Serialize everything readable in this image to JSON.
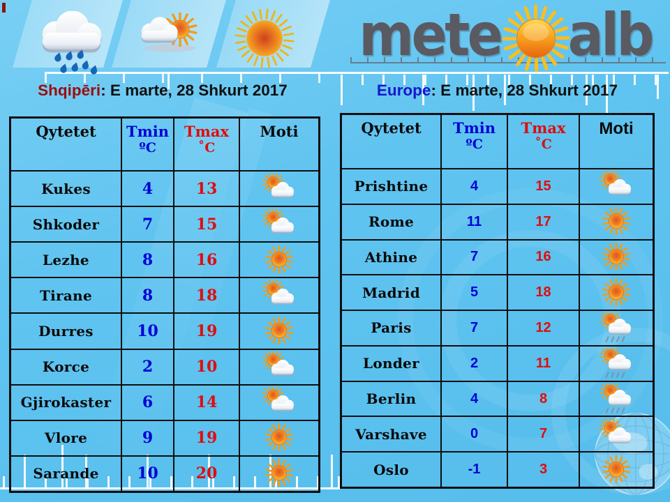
{
  "logo": {
    "text_left": "mete",
    "text_right": "alb",
    "sun_icon": "logo-sun"
  },
  "header_icons": [
    {
      "name": "rain-icon"
    },
    {
      "name": "sun-behind-cloud-icon"
    },
    {
      "name": "sun-icon"
    }
  ],
  "sections": {
    "left": {
      "region": "Shqipēri",
      "date_suffix": ": E marte, 28 Shkurt 2017",
      "region_color": "#9b0d0d",
      "table": {
        "columns": [
          "Qytetet",
          "Tmin",
          "Tmax",
          "Moti"
        ],
        "unit_min": "ºC",
        "unit_max": "˚C",
        "rows": [
          {
            "city": "Kukes",
            "tmin": "4",
            "tmax": "13",
            "icon": "partly-cloudy"
          },
          {
            "city": "Shkoder",
            "tmin": "7",
            "tmax": "15",
            "icon": "partly-cloudy"
          },
          {
            "city": "Lezhe",
            "tmin": "8",
            "tmax": "16",
            "icon": "sunny"
          },
          {
            "city": "Tirane",
            "tmin": "8",
            "tmax": "18",
            "icon": "partly-cloudy"
          },
          {
            "city": "Durres",
            "tmin": "10",
            "tmax": "19",
            "icon": "sunny"
          },
          {
            "city": "Korce",
            "tmin": "2",
            "tmax": "10",
            "icon": "partly-cloudy"
          },
          {
            "city": "Gjirokaster",
            "tmin": "6",
            "tmax": "14",
            "icon": "partly-cloudy"
          },
          {
            "city": "Vlore",
            "tmin": "9",
            "tmax": "19",
            "icon": "sunny"
          },
          {
            "city": "Sarande",
            "tmin": "10",
            "tmax": "20",
            "icon": "sunny"
          }
        ]
      }
    },
    "right": {
      "region": "Europe",
      "date_suffix": ": E marte, 28 Shkurt 2017",
      "region_color": "#1717cf",
      "table": {
        "columns": [
          "Qytetet",
          "Tmin",
          "Tmax",
          "Moti"
        ],
        "unit_min": "ºC",
        "unit_max": "˚C",
        "rows": [
          {
            "city": "Prishtine",
            "tmin": "4",
            "tmax": "15",
            "icon": "partly-cloudy"
          },
          {
            "city": "Rome",
            "tmin": "11",
            "tmax": "17",
            "icon": "sunny"
          },
          {
            "city": "Athine",
            "tmin": "7",
            "tmax": "16",
            "icon": "sunny"
          },
          {
            "city": "Madrid",
            "tmin": "5",
            "tmax": "18",
            "icon": "sunny"
          },
          {
            "city": "Paris",
            "tmin": "7",
            "tmax": "12",
            "icon": "showers"
          },
          {
            "city": "Londer",
            "tmin": "2",
            "tmax": "11",
            "icon": "showers"
          },
          {
            "city": "Berlin",
            "tmin": "4",
            "tmax": "8",
            "icon": "showers"
          },
          {
            "city": "Varshave",
            "tmin": "0",
            "tmax": "7",
            "icon": "partly-cloudy"
          },
          {
            "city": "Oslo",
            "tmin": "-1",
            "tmax": "3",
            "icon": "sunny"
          }
        ]
      }
    }
  },
  "colors": {
    "background_blue": "#5ec4f0",
    "logo_gray": "#5a5a62",
    "temp_min_blue": "#0101d6",
    "temp_max_red": "#df0d0d",
    "region_left_red": "#9b0d0d",
    "region_right_blue": "#1717cf"
  }
}
